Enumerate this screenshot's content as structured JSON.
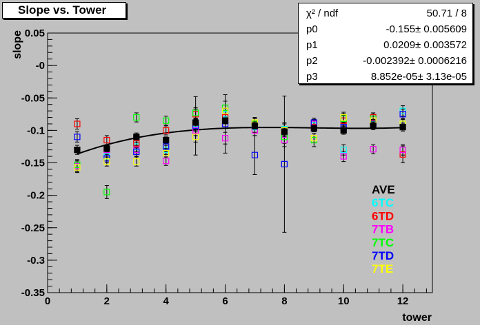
{
  "title": "Slope vs. Tower",
  "fit_stats": [
    {
      "key": "χ² / ndf",
      "value": "50.71 / 8"
    },
    {
      "key": "p0",
      "value": "-0.155± 0.005609"
    },
    {
      "key": "p1",
      "value": "0.0209± 0.003572"
    },
    {
      "key": "p2",
      "value": "-0.002392± 0.0006216"
    },
    {
      "key": "p3",
      "value": "8.852e-05± 3.13e-05"
    }
  ],
  "chart_data": {
    "type": "scatter",
    "title": "Slope vs. Tower",
    "xlabel": "tower",
    "ylabel": "slope",
    "xlim": [
      0,
      13
    ],
    "ylim": [
      -0.35,
      0.05
    ],
    "xticks": [
      0,
      2,
      4,
      6,
      8,
      10,
      12
    ],
    "yticks": [
      0.05,
      0,
      -0.05,
      -0.1,
      -0.15,
      -0.2,
      -0.25,
      -0.3,
      -0.35
    ],
    "ytick_labels": [
      "0.05",
      "-0",
      "-0.05",
      "-0.1",
      "-0.15",
      "-0.2",
      "-0.25",
      "-0.3",
      "-0.35"
    ],
    "series": [
      {
        "name": "AVE",
        "color": "#000000",
        "filled": true,
        "x": [
          1,
          2,
          3,
          4,
          5,
          6,
          7,
          8,
          9,
          10,
          11,
          12
        ],
        "y": [
          -0.13,
          -0.128,
          -0.11,
          -0.115,
          -0.088,
          -0.085,
          -0.093,
          -0.102,
          -0.097,
          -0.1,
          -0.093,
          -0.095
        ],
        "err": [
          0.007,
          0.006,
          0.006,
          0.005,
          0.006,
          0.005,
          0.006,
          0.006,
          0.005,
          0.006,
          0.006,
          0.006
        ]
      },
      {
        "name": "6TC",
        "color": "#00ffff",
        "filled": false,
        "x": [
          1,
          2,
          3,
          4,
          5,
          6,
          7,
          8,
          9,
          10,
          11,
          12
        ],
        "y": [
          -0.155,
          -0.14,
          -0.125,
          -0.13,
          -0.09,
          -0.075,
          -0.095,
          -0.098,
          -0.092,
          -0.13,
          -0.09,
          -0.07
        ],
        "err": [
          0.008,
          0.007,
          0.007,
          0.007,
          0.008,
          0.009,
          0.008,
          0.01,
          0.007,
          0.008,
          0.007,
          0.008
        ]
      },
      {
        "name": "6TD",
        "color": "#ff0000",
        "filled": false,
        "x": [
          1,
          2,
          3,
          4,
          5,
          6,
          7,
          8,
          9,
          10,
          11,
          12
        ],
        "y": [
          -0.09,
          -0.115,
          -0.12,
          -0.1,
          -0.075,
          -0.08,
          -0.09,
          -0.1,
          -0.095,
          -0.085,
          -0.08,
          -0.137
        ],
        "err": [
          0.008,
          0.007,
          0.007,
          0.007,
          0.008,
          0.009,
          0.008,
          0.01,
          0.007,
          0.008,
          0.007,
          0.013
        ]
      },
      {
        "name": "7TB",
        "color": "#ff00ff",
        "filled": false,
        "x": [
          1,
          2,
          3,
          4,
          5,
          6,
          7,
          8,
          9,
          10,
          11,
          12
        ],
        "y": [
          -0.155,
          -0.13,
          -0.13,
          -0.147,
          -0.1,
          -0.112,
          -0.1,
          -0.115,
          -0.09,
          -0.14,
          -0.129,
          -0.13
        ],
        "err": [
          0.008,
          0.007,
          0.007,
          0.007,
          0.008,
          0.009,
          0.008,
          0.01,
          0.007,
          0.008,
          0.007,
          0.008
        ]
      },
      {
        "name": "7TC",
        "color": "#00ff00",
        "filled": false,
        "x": [
          1,
          2,
          3,
          4,
          5,
          6,
          7,
          8,
          9,
          10,
          11,
          12
        ],
        "y": [
          -0.153,
          -0.195,
          -0.08,
          -0.085,
          -0.073,
          -0.065,
          -0.09,
          -0.11,
          -0.115,
          -0.082,
          -0.082,
          -0.09
        ],
        "err": [
          0.008,
          0.01,
          0.007,
          0.007,
          0.008,
          0.01,
          0.008,
          0.01,
          0.01,
          0.008,
          0.007,
          0.008
        ]
      },
      {
        "name": "7TD",
        "color": "#0000ff",
        "filled": false,
        "x": [
          1,
          2,
          3,
          4,
          5,
          6,
          7,
          8,
          9,
          10,
          11,
          12
        ],
        "y": [
          -0.11,
          -0.143,
          -0.133,
          -0.125,
          -0.093,
          -0.09,
          -0.138,
          -0.152,
          -0.088,
          -0.095,
          -0.09,
          -0.075
        ],
        "err": [
          0.008,
          0.007,
          0.007,
          0.007,
          0.045,
          0.045,
          0.03,
          0.105,
          0.007,
          0.008,
          0.007,
          0.008
        ]
      },
      {
        "name": "7TE",
        "color": "#ffff00",
        "filled": false,
        "x": [
          1,
          2,
          3,
          4,
          5,
          6,
          7,
          8,
          9,
          10,
          11,
          12
        ],
        "y": [
          -0.157,
          -0.148,
          -0.148,
          -0.135,
          -0.11,
          -0.07,
          -0.088,
          -0.1,
          -0.112,
          -0.08,
          -0.085,
          -0.09
        ],
        "err": [
          0.008,
          0.007,
          0.007,
          0.007,
          0.008,
          0.009,
          0.008,
          0.01,
          0.007,
          0.008,
          0.007,
          0.008
        ]
      }
    ],
    "fit_curve": {
      "function": "p0 + p1*x + p2*x^2 + p3*x^3",
      "params": {
        "p0": -0.155,
        "p1": 0.0209,
        "p2": -0.002392,
        "p3": 8.852e-05
      },
      "x_range": [
        1,
        12
      ]
    },
    "legend_position": "bottom-right",
    "grid": false
  }
}
